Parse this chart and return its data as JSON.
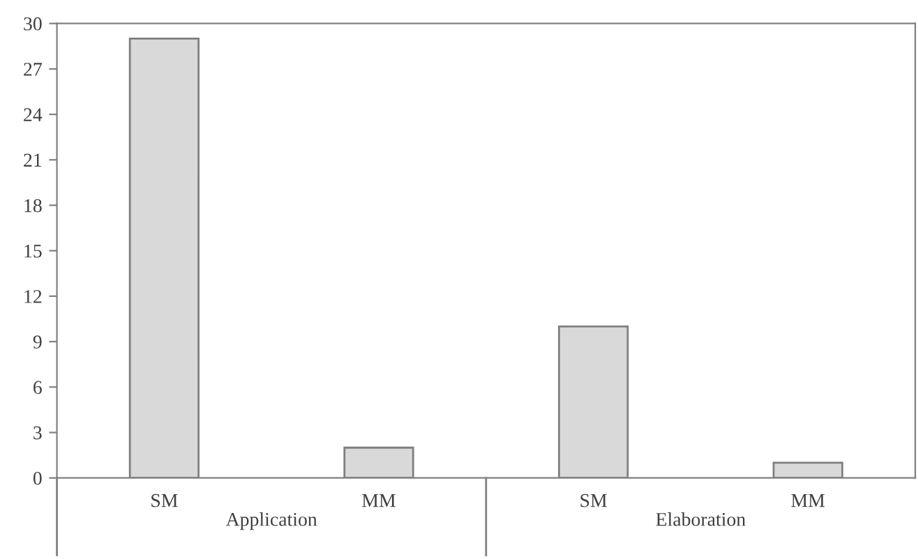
{
  "chart_data": {
    "type": "bar",
    "categories": [
      "SM",
      "MM",
      "SM",
      "MM"
    ],
    "values": [
      29,
      2,
      10,
      1
    ],
    "color": "#d9d9d9",
    "ylim": [
      0,
      30
    ],
    "yticks": [
      0,
      3,
      6,
      9,
      12,
      15,
      18,
      21,
      24,
      27,
      30
    ],
    "grid": false,
    "annotations": [
      "Application",
      "Elaboration"
    ]
  }
}
